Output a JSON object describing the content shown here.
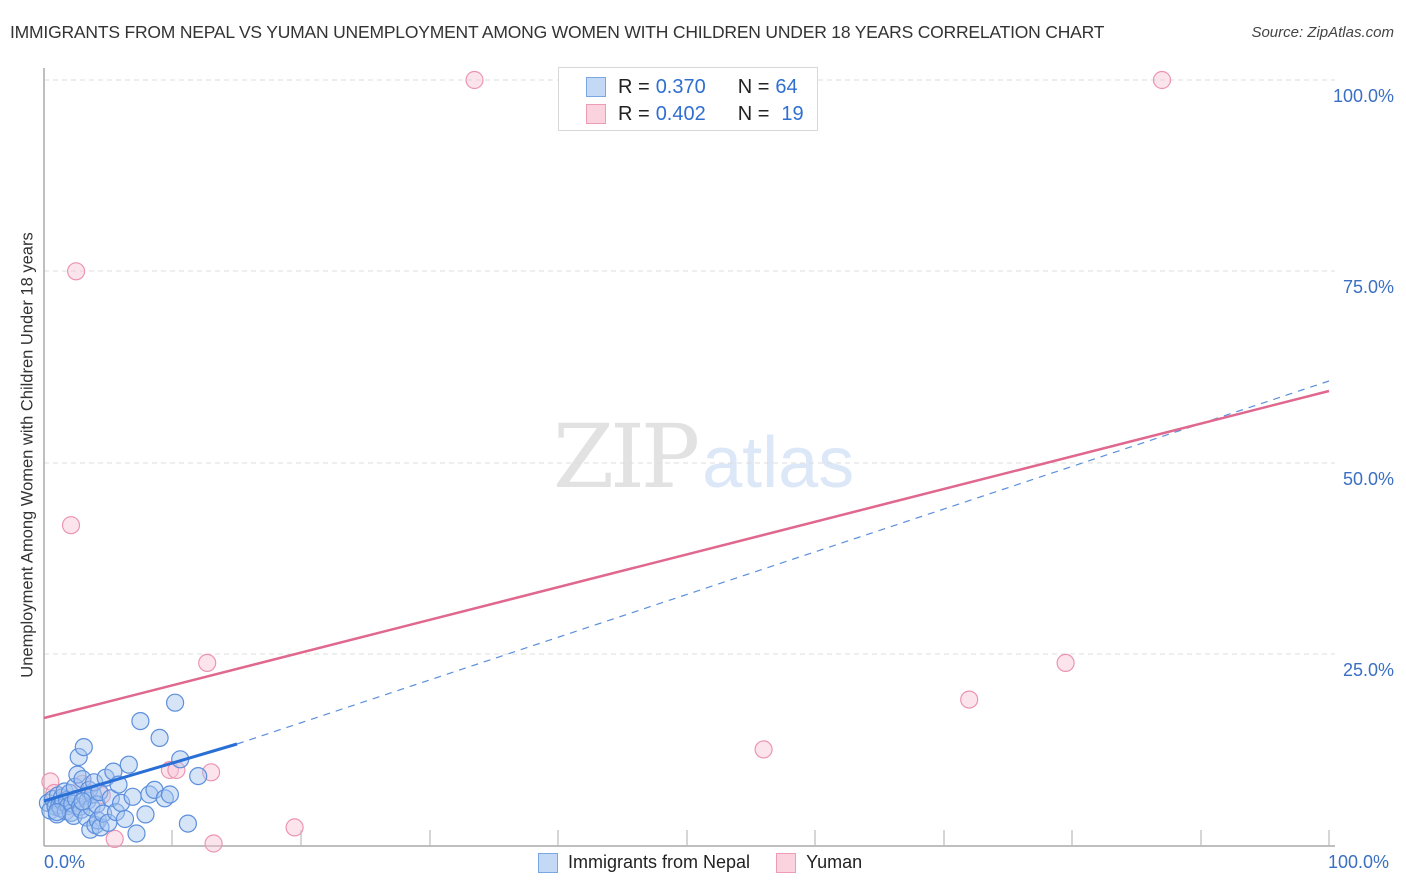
{
  "header": {
    "title": "IMMIGRANTS FROM NEPAL VS YUMAN UNEMPLOYMENT AMONG WOMEN WITH CHILDREN UNDER 18 YEARS CORRELATION CHART",
    "source": "Source: ZipAtlas.com"
  },
  "watermark": {
    "zip": "ZIP",
    "atlas": "atlas"
  },
  "axes": {
    "ylabel": "Unemployment Among Women with Children Under 18 years",
    "yticks": [
      "100.0%",
      "75.0%",
      "50.0%",
      "25.0%"
    ],
    "xticks": {
      "min": "0.0%",
      "max": "100.0%"
    }
  },
  "legend": {
    "rows": [
      {
        "r_label": "R = ",
        "r_value": "0.370",
        "n_label": "N = ",
        "n_value": "64",
        "color": "#6fa0e8"
      },
      {
        "r_label": "R = ",
        "r_value": "0.402",
        "n_label": "N = ",
        "n_value": "19",
        "color": "#f2a0b8"
      }
    ]
  },
  "bottom_legend": {
    "items": [
      {
        "label": "Immigrants from Nepal",
        "fill": "#c4d9f6",
        "stroke": "#7aa6e6"
      },
      {
        "label": "Yuman",
        "fill": "#fbd3de",
        "stroke": "#ee9bb4"
      }
    ]
  },
  "colors": {
    "blue_fill": "rgba(164,196,240,0.45)",
    "blue_stroke": "#5c8fdc",
    "blue_line": "#2a6fd6",
    "pink_fill": "rgba(248,196,212,0.45)",
    "pink_stroke": "#ec95b0",
    "pink_line": "#e0688e",
    "tick_label": "#3a6fc4"
  },
  "chart_data": {
    "type": "scatter",
    "title": "IMMIGRANTS FROM NEPAL VS YUMAN UNEMPLOYMENT AMONG WOMEN WITH CHILDREN UNDER 18 YEARS CORRELATION CHART",
    "xlabel": "",
    "ylabel": "Unemployment Among Women with Children Under 18 years",
    "xlim": [
      0,
      100
    ],
    "ylim": [
      0,
      100
    ],
    "xtick_labels": [
      "0.0%",
      "100.0%"
    ],
    "ytick_labels": [
      "25.0%",
      "50.0%",
      "75.0%",
      "100.0%"
    ],
    "grid": "horizontal dashed",
    "legend_position": "top-center and bottom",
    "series": [
      {
        "name": "Immigrants from Nepal",
        "R": 0.37,
        "N": 64,
        "points": [
          [
            0.3,
            5.5
          ],
          [
            0.5,
            4.5
          ],
          [
            0.7,
            6.0
          ],
          [
            0.9,
            5.0
          ],
          [
            1.0,
            4.0
          ],
          [
            1.1,
            6.5
          ],
          [
            1.2,
            5.2
          ],
          [
            1.3,
            4.8
          ],
          [
            1.4,
            6.2
          ],
          [
            1.5,
            5.6
          ],
          [
            1.6,
            7.0
          ],
          [
            1.7,
            4.4
          ],
          [
            1.8,
            5.9
          ],
          [
            1.9,
            5.1
          ],
          [
            2.0,
            6.8
          ],
          [
            2.1,
            4.2
          ],
          [
            2.2,
            5.4
          ],
          [
            2.3,
            3.8
          ],
          [
            2.4,
            7.6
          ],
          [
            2.5,
            6.0
          ],
          [
            2.6,
            9.2
          ],
          [
            2.7,
            11.5
          ],
          [
            2.8,
            5.0
          ],
          [
            2.9,
            4.6
          ],
          [
            3.0,
            8.6
          ],
          [
            3.1,
            12.8
          ],
          [
            3.2,
            6.4
          ],
          [
            3.3,
            3.6
          ],
          [
            3.4,
            5.8
          ],
          [
            3.5,
            7.2
          ],
          [
            3.6,
            2.0
          ],
          [
            3.7,
            4.9
          ],
          [
            3.8,
            6.6
          ],
          [
            3.9,
            8.2
          ],
          [
            4.0,
            2.6
          ],
          [
            4.1,
            5.3
          ],
          [
            4.2,
            3.2
          ],
          [
            4.3,
            6.9
          ],
          [
            4.4,
            2.3
          ],
          [
            4.6,
            4.1
          ],
          [
            4.8,
            8.8
          ],
          [
            5.0,
            2.9
          ],
          [
            5.2,
            6.1
          ],
          [
            5.4,
            9.6
          ],
          [
            5.6,
            4.3
          ],
          [
            5.8,
            7.9
          ],
          [
            6.0,
            5.5
          ],
          [
            6.3,
            3.4
          ],
          [
            6.6,
            10.5
          ],
          [
            6.9,
            6.3
          ],
          [
            7.2,
            1.5
          ],
          [
            7.5,
            16.2
          ],
          [
            7.9,
            4.0
          ],
          [
            8.2,
            6.6
          ],
          [
            8.6,
            7.2
          ],
          [
            9.0,
            14.0
          ],
          [
            9.4,
            6.1
          ],
          [
            9.8,
            6.6
          ],
          [
            10.2,
            18.6
          ],
          [
            10.6,
            11.2
          ],
          [
            11.2,
            2.8
          ],
          [
            12.0,
            9.0
          ],
          [
            3.0,
            5.7
          ],
          [
            1.0,
            4.3
          ]
        ],
        "trend_line": {
          "x": [
            0,
            15
          ],
          "y": [
            5.8,
            13.3
          ],
          "extended_dashed_to": [
            100,
            60.5
          ]
        }
      },
      {
        "name": "Yuman",
        "R": 0.402,
        "N": 19,
        "points": [
          [
            0.5,
            8.3
          ],
          [
            0.8,
            6.8
          ],
          [
            1.2,
            5.2
          ],
          [
            2.1,
            41.8
          ],
          [
            2.5,
            75.0
          ],
          [
            3.0,
            8.0
          ],
          [
            4.5,
            6.5
          ],
          [
            5.5,
            0.8
          ],
          [
            9.8,
            9.8
          ],
          [
            10.3,
            9.8
          ],
          [
            12.7,
            23.8
          ],
          [
            13.0,
            9.5
          ],
          [
            13.2,
            0.2
          ],
          [
            19.5,
            2.3
          ],
          [
            33.5,
            100.0
          ],
          [
            56.0,
            12.5
          ],
          [
            72.0,
            19.0
          ],
          [
            79.5,
            23.8
          ],
          [
            87.0,
            100.0
          ]
        ],
        "trend_line": {
          "x": [
            0,
            100
          ],
          "y": [
            16.3,
            59.2
          ]
        }
      }
    ]
  }
}
